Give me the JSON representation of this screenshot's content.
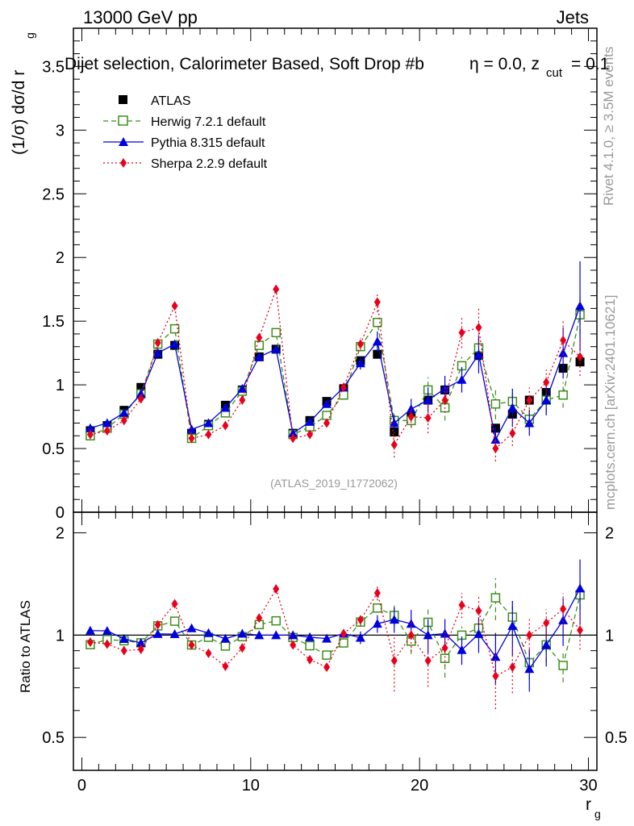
{
  "header": {
    "left": "13000 GeV pp",
    "right": "Jets",
    "title": "Dijet selection, Calorimeter Based, Soft Drop #b",
    "title_eta": "η = 0.0, z",
    "title_sub": "cut",
    "title_tail": " = 0.1",
    "side_rivet": "Rivet 4.1.0, ≥ 3.5M events",
    "side_mcplots": "mcplots.cern.ch [arXiv:2401.10621]",
    "watermark": "(ATLAS_2019_I1772062)"
  },
  "chart_data": {
    "type": "line",
    "xlabel": "r",
    "xlabel_sub": "g",
    "ylabel": "(1/σ) dσ/d r",
    "ylabel_sub": "g",
    "ratio_ylabel": "Ratio to ATLAS",
    "xlim": [
      -0.5,
      30.5
    ],
    "ylim": [
      0,
      3.8
    ],
    "ratio_ylim": [
      0.4,
      2.3
    ],
    "x_ticks": [
      "0",
      "10",
      "20",
      "30"
    ],
    "y_ticks": [
      "0",
      "0.5",
      "1",
      "1.5",
      "2",
      "2.5",
      "3",
      "3.5"
    ],
    "ratio_ticks": [
      "0.5",
      "1",
      "2"
    ],
    "x": [
      0.5,
      1.5,
      2.5,
      3.5,
      4.5,
      5.5,
      6.5,
      7.5,
      8.5,
      9.5,
      10.5,
      11.5,
      12.5,
      13.5,
      14.5,
      15.5,
      16.5,
      17.5,
      18.5,
      19.5,
      20.5,
      21.5,
      22.5,
      23.5,
      24.5,
      25.5,
      26.5,
      27.5,
      28.5,
      29.5
    ],
    "series": [
      {
        "name": "ATLAS",
        "color": "#000000",
        "marker": "square",
        "values": [
          0.64,
          0.68,
          0.8,
          0.98,
          1.24,
          1.31,
          0.62,
          0.69,
          0.84,
          0.96,
          1.22,
          1.28,
          0.62,
          0.72,
          0.87,
          0.97,
          1.19,
          1.24,
          0.63,
          0.75,
          0.88,
          0.96,
          1.15,
          1.23,
          0.66,
          0.77,
          0.88,
          0.94,
          1.13,
          1.18
        ]
      },
      {
        "name": "Herwig 7.2.1 default",
        "color": "#3b8f1a",
        "marker": "open-square",
        "dash": "6,4",
        "values": [
          0.6,
          0.66,
          0.77,
          0.93,
          1.32,
          1.44,
          0.58,
          0.68,
          0.78,
          0.95,
          1.31,
          1.41,
          0.61,
          0.67,
          0.76,
          0.92,
          1.3,
          1.49,
          0.72,
          0.72,
          0.96,
          0.82,
          1.15,
          1.29,
          0.85,
          0.87,
          0.73,
          0.88,
          0.92,
          1.55
        ],
        "errors": [
          0,
          0,
          0,
          0,
          0,
          0,
          0,
          0,
          0,
          0,
          0,
          0,
          0,
          0,
          0,
          0,
          0,
          0,
          0.05,
          0.06,
          0.1,
          0.1,
          0.07,
          0.08,
          0.12,
          0.1,
          0.08,
          0.1,
          0.1,
          0.15
        ]
      },
      {
        "name": "Pythia 8.315 default",
        "color": "#0000dd",
        "marker": "triangle",
        "values": [
          0.66,
          0.7,
          0.78,
          0.93,
          1.25,
          1.32,
          0.65,
          0.7,
          0.82,
          0.97,
          1.22,
          1.28,
          0.62,
          0.71,
          0.85,
          0.98,
          1.17,
          1.34,
          0.7,
          0.81,
          0.88,
          0.97,
          1.04,
          1.24,
          0.57,
          0.82,
          0.7,
          0.88,
          1.25,
          1.62
        ],
        "errors": [
          0,
          0,
          0,
          0,
          0,
          0,
          0,
          0,
          0,
          0,
          0,
          0,
          0,
          0,
          0,
          0,
          0.05,
          0.08,
          0.06,
          0.08,
          0.1,
          0.1,
          0.1,
          0.15,
          0.1,
          0.15,
          0.1,
          0.12,
          0.2,
          0.35
        ]
      },
      {
        "name": "Sherpa 2.2.9 default",
        "color": "#e8001c",
        "marker": "diamond",
        "dash": "2,3",
        "values": [
          0.61,
          0.64,
          0.72,
          0.89,
          1.33,
          1.62,
          0.58,
          0.61,
          0.68,
          0.88,
          1.37,
          1.75,
          0.58,
          0.61,
          0.7,
          0.98,
          1.32,
          1.65,
          0.53,
          0.75,
          0.74,
          0.88,
          1.41,
          1.45,
          0.5,
          0.62,
          0.88,
          1.02,
          1.35,
          1.22
        ],
        "errors": [
          0,
          0,
          0,
          0,
          0,
          0,
          0,
          0,
          0,
          0,
          0,
          0,
          0,
          0,
          0,
          0,
          0.05,
          0.08,
          0.1,
          0.08,
          0.12,
          0.1,
          0.12,
          0.15,
          0.1,
          0.1,
          0.1,
          0.1,
          0.15,
          0.15
        ]
      }
    ]
  }
}
